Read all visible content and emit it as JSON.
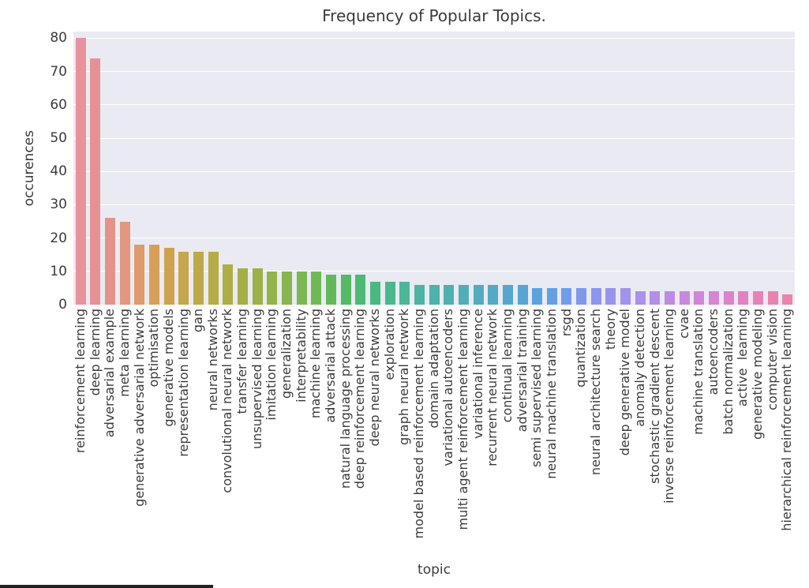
{
  "figure": {
    "background": "#ffffff",
    "plot_background": "#eaeaf2",
    "grid_color": "#ffffff",
    "text_color": "#3b3b3b",
    "bottom_strip_color": "#222222"
  },
  "chart_data": {
    "type": "bar",
    "title": "Frequency of Popular Topics.",
    "xlabel": "topic",
    "ylabel": "occurences",
    "ylim": [
      0,
      82
    ],
    "yticks": [
      0,
      10,
      20,
      30,
      40,
      50,
      60,
      70,
      80
    ],
    "grid": true,
    "legend": null,
    "categories": [
      "reinforcement learning",
      "deep learning",
      "adversarial example",
      "meta learning",
      "generative adversarial network",
      "optimisation",
      "generative models",
      "representation learning",
      "gan",
      "neural networks",
      "convolutional neural network",
      "transfer learning",
      "unsupervised learning",
      "imitation learning",
      "generalization",
      "interpretability",
      "machine learning",
      "adversarial attack",
      "natural language processing",
      "deep reinforcement learning",
      "deep neural networks",
      "exploration",
      "graph neural network",
      "model based reinforcement learning",
      "domain adaptation",
      "variational autoencoders",
      "multi agent reinforcement learning",
      "variational inference",
      "recurrent neural network",
      "continual learning",
      "adversarial training",
      "semi supervised learning",
      "neural machine translation",
      "rsgd",
      "quantization",
      "neural architecture search",
      "theory",
      "deep generative model",
      "anomaly detection",
      "stochastic gradient descent",
      "inverse reinforcement learning",
      "cvae",
      "machine translation",
      "autoencoders",
      "batch normalization",
      "active  learning",
      "generative modeling",
      "computer vision",
      "hierarchical reinforcement learning"
    ],
    "values": [
      80,
      74,
      26,
      25,
      18,
      18,
      17,
      16,
      16,
      16,
      12,
      11,
      11,
      10,
      10,
      10,
      10,
      9,
      9,
      9,
      7,
      7,
      7,
      6,
      6,
      6,
      6,
      6,
      6,
      6,
      6,
      5,
      5,
      5,
      5,
      5,
      5,
      5,
      4,
      4,
      4,
      4,
      4,
      4,
      4,
      4,
      4,
      4,
      3
    ],
    "bar_colors": [
      "#e8929e",
      "#e69295",
      "#e4938b",
      "#e29780",
      "#df9b6b",
      "#d89f58",
      "#cfa34e",
      "#c6a74a",
      "#bea948",
      "#b5ac47",
      "#adae46",
      "#a4b046",
      "#9bb248",
      "#92b44a",
      "#88b54d",
      "#7db751",
      "#70b856",
      "#62b95c",
      "#54ba66",
      "#4cba72",
      "#49b982",
      "#4ab78f",
      "#4cb699",
      "#4eb4a1",
      "#4fb2a9",
      "#50b0b0",
      "#51aeb7",
      "#52acbe",
      "#54aac5",
      "#55a7cd",
      "#58a5d5",
      "#5ca2de",
      "#649fe5",
      "#719ce9",
      "#8099eb",
      "#8d96ec",
      "#9894ec",
      "#a292eb",
      "#ac90e9",
      "#b58ee6",
      "#be8be2",
      "#c789dd",
      "#cf86d8",
      "#d785d2",
      "#dd83ca",
      "#e282c2",
      "#e582b9",
      "#e883b1",
      "#ea84a8"
    ]
  }
}
